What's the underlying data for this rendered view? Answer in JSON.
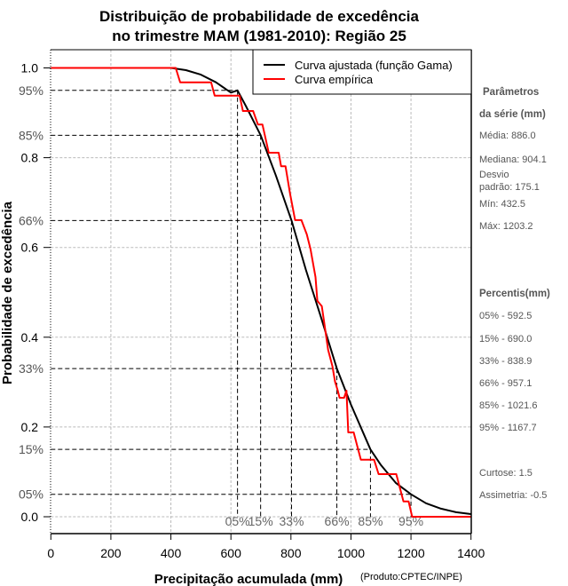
{
  "chart_data": {
    "type": "line",
    "title_line1": "Distribuição de probabilidade de excedência",
    "title_line2": "no trimestre MAM (1981-2010): Região 25",
    "xlabel": "Precipitação acumulada (mm)",
    "ylabel": "Probabilidade de excedência",
    "credit": "(Produto:CPTEC/INPE)",
    "xlim": [
      0,
      1400
    ],
    "ylim": [
      0.0,
      1.0
    ],
    "grid": true,
    "x_ticks": [
      {
        "value": 0,
        "label": "0"
      },
      {
        "value": 200,
        "label": "200"
      },
      {
        "value": 400,
        "label": "400"
      },
      {
        "value": 600,
        "label": "600"
      },
      {
        "value": 800,
        "label": "800"
      },
      {
        "value": 1000,
        "label": "1000"
      },
      {
        "value": 1200,
        "label": "1200"
      },
      {
        "value": 1400,
        "label": "1400"
      }
    ],
    "y_ticks": [
      {
        "value": 1.0,
        "label": "1.0"
      },
      {
        "value": 0.8,
        "label": "0.8"
      },
      {
        "value": 0.6,
        "label": "0.6"
      },
      {
        "value": 0.4,
        "label": "0.4"
      },
      {
        "value": 0.2,
        "label": "0.2"
      },
      {
        "value": 0.0,
        "label": "0.0"
      }
    ],
    "percentile_lines": [
      {
        "y_label": "95%",
        "level": 0.95,
        "x_label": "05%",
        "x_value": 622
      },
      {
        "y_label": "85%",
        "level": 0.85,
        "x_label": "15%",
        "x_value": 699
      },
      {
        "y_label": "66%",
        "level": 0.66,
        "x_label": "33%",
        "x_value": 802
      },
      {
        "y_label": "33%",
        "level": 0.33,
        "x_label": "66%",
        "x_value": 953
      },
      {
        "y_label": "15%",
        "level": 0.15,
        "x_label": "85%",
        "x_value": 1065
      },
      {
        "y_label": "05%",
        "level": 0.05,
        "x_label": "95%",
        "x_value": 1200
      }
    ],
    "legend_position": "top-right",
    "series": [
      {
        "name": "Curva ajustada (função Gama)",
        "color": "#000000",
        "x": [
          0,
          400,
          450,
          500,
          550,
          600,
          622,
          650,
          699,
          750,
          802,
          850,
          900,
          953,
          1000,
          1065,
          1100,
          1150,
          1200,
          1250,
          1300,
          1350,
          1400
        ],
        "y": [
          1.0,
          1.0,
          0.995,
          0.985,
          0.968,
          0.945,
          0.95,
          0.915,
          0.85,
          0.76,
          0.66,
          0.55,
          0.445,
          0.33,
          0.25,
          0.15,
          0.115,
          0.075,
          0.05,
          0.03,
          0.018,
          0.01,
          0.006
        ]
      },
      {
        "name": "Curva empírica",
        "color": "#ff0000",
        "x": [
          0,
          416,
          431,
          534,
          546,
          629,
          640,
          674,
          690,
          705,
          726,
          759,
          767,
          782,
          797,
          814,
          835,
          853,
          865,
          882,
          888,
          903,
          909,
          924,
          938,
          947,
          956,
          962,
          977,
          985,
          991,
          1009,
          1033,
          1077,
          1092,
          1151,
          1175,
          1192,
          1204,
          1400
        ],
        "y": [
          1.0,
          1.0,
          0.968,
          0.968,
          0.938,
          0.938,
          0.904,
          0.904,
          0.874,
          0.874,
          0.811,
          0.811,
          0.781,
          0.781,
          0.72,
          0.661,
          0.661,
          0.629,
          0.597,
          0.534,
          0.481,
          0.469,
          0.441,
          0.372,
          0.336,
          0.301,
          0.281,
          0.265,
          0.265,
          0.281,
          0.188,
          0.188,
          0.127,
          0.127,
          0.095,
          0.095,
          0.034,
          0.034,
          0.0,
          0.0
        ]
      }
    ]
  },
  "side_panel": {
    "params_head1": "Parâmetros",
    "params_head2": "da série (mm)",
    "media": "Média: 886.0",
    "mediana": "Mediana: 904.1",
    "desvio1": "Desvio",
    "desvio2": "padrão: 175.1",
    "min": "Mín: 432.5",
    "max": "Máx: 1203.2",
    "percentis_head": "Percentis(mm)",
    "p05": "05% - 592.5",
    "p15": "15% - 690.0",
    "p33": "33% - 838.9",
    "p66": "66% - 957.1",
    "p85": "85% - 1021.6",
    "p95": "95% - 1167.7",
    "curtose": "Curtose: 1.5",
    "assimetria": "Assimetria: -0.5"
  }
}
